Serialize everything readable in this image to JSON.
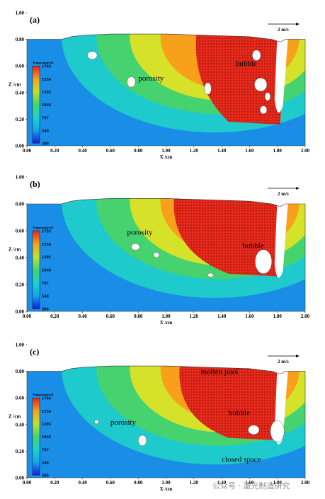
{
  "chart_data": [
    {
      "type": "heatmap",
      "panel": "(a)",
      "xlabel": "X /cm",
      "ylabel": "Z /cm",
      "xlim": [
        0.0,
        2.0
      ],
      "ylim": [
        0.0,
        1.0
      ],
      "xticks": [
        "0.00",
        "0.20",
        "0.40",
        "0.60",
        "0.80",
        "1.00",
        "1.20",
        "1.40",
        "1.60",
        "1.80",
        "2.00"
      ],
      "yticks": [
        "0.00",
        "0.20",
        "0.40",
        "0.60",
        "0.80",
        "1.00"
      ],
      "colorbar": {
        "title": "Temperature/K",
        "ticks": [
          "1793",
          "1554",
          "1295",
          "1046",
          "797",
          "548",
          "300"
        ]
      },
      "velocity_scale": "2 m/s",
      "annotations": [
        "porosity",
        "bubble"
      ],
      "legend_placement": "left-middle"
    },
    {
      "type": "heatmap",
      "panel": "(b)",
      "xlabel": "X /cm",
      "ylabel": "Z /cm",
      "xlim": [
        0.0,
        2.0
      ],
      "ylim": [
        0.0,
        1.0
      ],
      "xticks": [
        "0.00",
        "0.20",
        "0.40",
        "0.60",
        "0.80",
        "1.00",
        "1.20",
        "1.40",
        "1.60",
        "1.80",
        "2.00"
      ],
      "yticks": [
        "0.00",
        "0.20",
        "0.40",
        "0.60",
        "0.80",
        "1.00"
      ],
      "colorbar": {
        "title": "Temperature/K",
        "ticks": [
          "1793",
          "1554",
          "1295",
          "1046",
          "797",
          "548",
          "300"
        ]
      },
      "velocity_scale": "2 m/s",
      "annotations": [
        "porosity",
        "bubble"
      ],
      "legend_placement": "left-middle"
    },
    {
      "type": "heatmap",
      "panel": "(c)",
      "xlabel": "X /cm",
      "ylabel": "Z /cm",
      "xlim": [
        0.0,
        2.0
      ],
      "ylim": [
        0.0,
        1.0
      ],
      "xticks": [
        "0.00",
        "0.20",
        "0.40",
        "0.60",
        "0.80",
        "1.00",
        "1.20",
        "1.40",
        "1.60",
        "1.80",
        "2.00"
      ],
      "yticks": [
        "0.00",
        "0.20",
        "0.40",
        "0.60",
        "0.80",
        "1.00"
      ],
      "colorbar": {
        "title": "Temperature/K",
        "ticks": [
          "1793",
          "1554",
          "1295",
          "1046",
          "797",
          "548",
          "300"
        ]
      },
      "velocity_scale": "2 m/s",
      "annotations": [
        "molten pool",
        "porosity",
        "bubble",
        "closed space"
      ],
      "legend_placement": "left-middle"
    }
  ],
  "watermark": "公众号 · 激光制造研究"
}
